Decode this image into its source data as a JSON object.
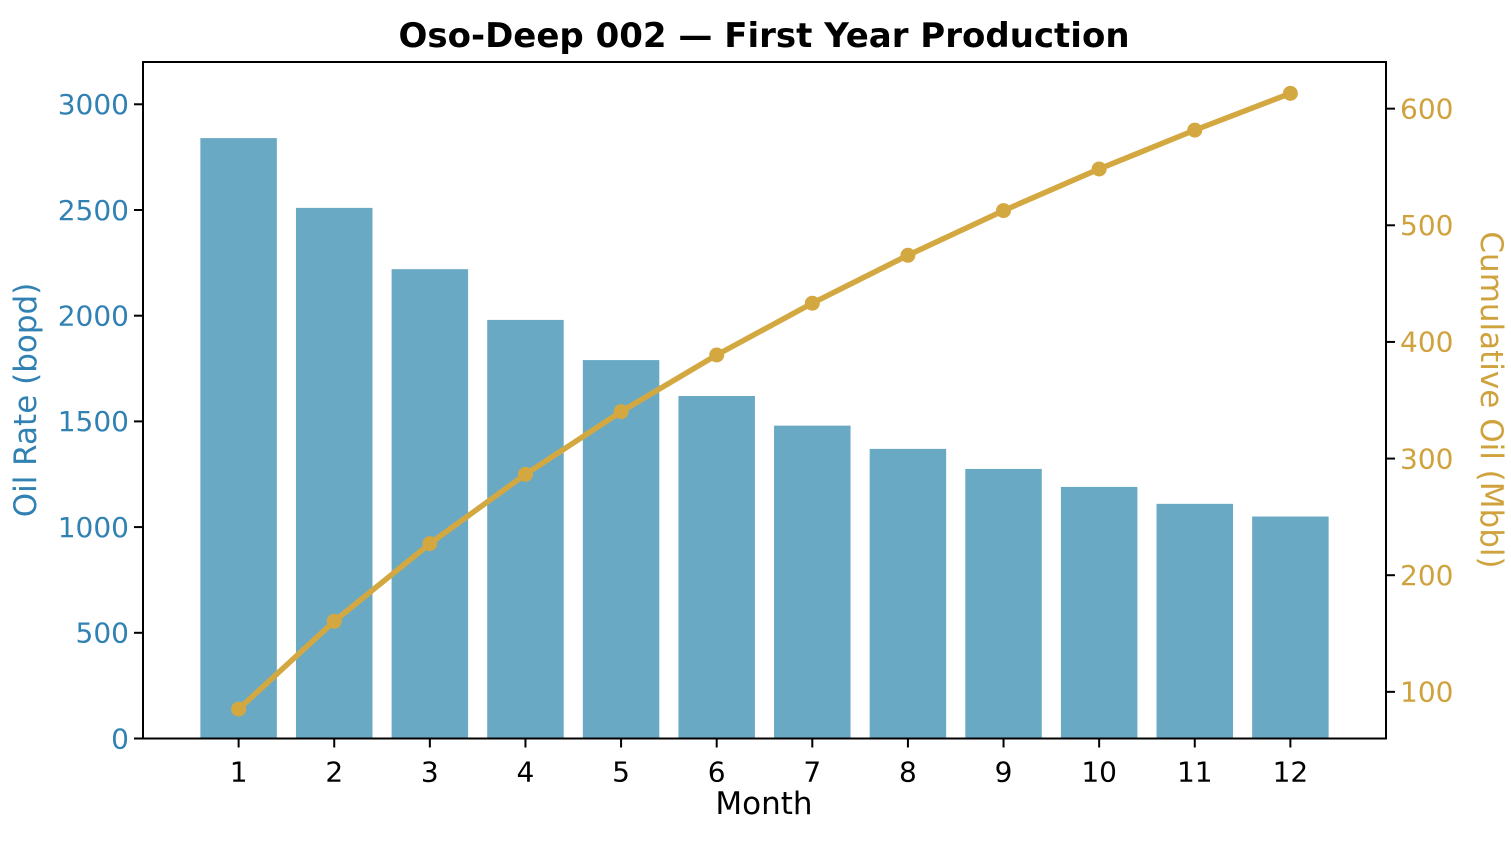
{
  "chart_data": {
    "type": "combo-bar-line",
    "title": "Oso-Deep 002 — First Year Production",
    "xlabel": "Month",
    "categories": [
      1,
      2,
      3,
      4,
      5,
      6,
      7,
      8,
      9,
      10,
      11,
      12
    ],
    "series": [
      {
        "name": "Oil Rate",
        "type": "bar",
        "axis": "left",
        "color": "#6aa9c4",
        "values": [
          2840,
          2510,
          2220,
          1980,
          1790,
          1620,
          1480,
          1370,
          1275,
          1190,
          1110,
          1050
        ]
      },
      {
        "name": "Cumulative Oil",
        "type": "line",
        "axis": "right",
        "color": "#d4a840",
        "marker": "circle",
        "values": [
          85.2,
          160.5,
          227.1,
          286.5,
          340.2,
          388.8,
          433.2,
          474.3,
          512.6,
          548.3,
          581.6,
          613.1
        ]
      }
    ],
    "x_axis": {
      "ticks": [
        1,
        2,
        3,
        4,
        5,
        6,
        7,
        8,
        9,
        10,
        11,
        12
      ],
      "range": [
        0,
        13
      ],
      "color": "#000000"
    },
    "left_axis": {
      "label": "Oil Rate (bopd)",
      "ticks": [
        0,
        500,
        1000,
        1500,
        2000,
        2500,
        3000
      ],
      "range": [
        0,
        3200
      ],
      "color": "#3181b3"
    },
    "right_axis": {
      "label": "Cumulative Oil (Mbbl)",
      "ticks": [
        100,
        200,
        300,
        400,
        500,
        600
      ],
      "range": [
        60,
        640
      ],
      "color": "#cfa23e"
    },
    "legend": "none",
    "grid": false
  }
}
